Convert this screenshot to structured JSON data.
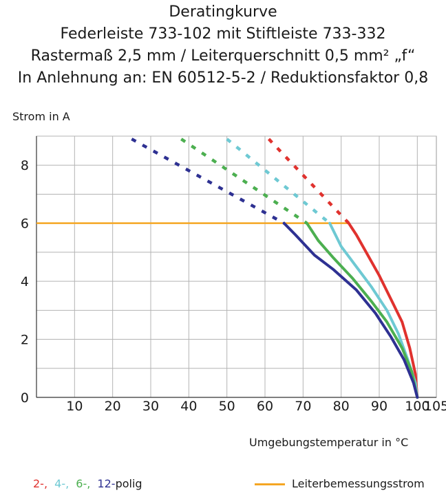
{
  "chart_data": {
    "type": "line",
    "title_lines": [
      "Deratingkurve",
      "Federleiste 733-102 mit Stiftleiste 733-332",
      "Rastermaß 2,5 mm / Leiterquerschnitt 0,5 mm² „f“",
      "In Anlehnung an: EN 60512-5-2 / Reduktionsfaktor 0,8"
    ],
    "ylabel": "Strom in A",
    "xlabel": "Umgebungstemperatur in °C",
    "xlim": [
      0,
      105
    ],
    "ylim": [
      0,
      9
    ],
    "x_ticks": [
      10,
      20,
      30,
      40,
      50,
      60,
      70,
      80,
      90,
      100,
      105
    ],
    "y_ticks": [
      0,
      2,
      4,
      6,
      8
    ],
    "x_grid": [
      10,
      20,
      30,
      40,
      50,
      60,
      70,
      80,
      90,
      100
    ],
    "y_grid": [
      1,
      2,
      3,
      4,
      5,
      6,
      7,
      8,
      9
    ],
    "rated_current": {
      "name": "Leiterbemessungsstrom",
      "value": 6,
      "color": "#f5a623"
    },
    "series": [
      {
        "name": "2-",
        "color": "#e0322e",
        "dashed": [
          [
            61,
            8.9
          ],
          [
            82,
            6.0
          ]
        ],
        "solid": [
          [
            82,
            6.0
          ],
          [
            84,
            5.6
          ],
          [
            87,
            4.9
          ],
          [
            90,
            4.2
          ],
          [
            93,
            3.4
          ],
          [
            96,
            2.6
          ],
          [
            98,
            1.7
          ],
          [
            99.5,
            0.8
          ],
          [
            100,
            0
          ]
        ]
      },
      {
        "name": "4-",
        "color": "#6ec9d3",
        "dashed": [
          [
            50,
            8.9
          ],
          [
            77,
            6.0
          ]
        ],
        "solid": [
          [
            77,
            6.0
          ],
          [
            80,
            5.2
          ],
          [
            84,
            4.5
          ],
          [
            88,
            3.8
          ],
          [
            92,
            3.0
          ],
          [
            95,
            2.2
          ],
          [
            97.5,
            1.3
          ],
          [
            99.5,
            0.5
          ],
          [
            100,
            0
          ]
        ]
      },
      {
        "name": "6-",
        "color": "#4caf50",
        "dashed": [
          [
            38,
            8.9
          ],
          [
            71,
            6.0
          ]
        ],
        "solid": [
          [
            71,
            6.0
          ],
          [
            74,
            5.4
          ],
          [
            78,
            4.8
          ],
          [
            83,
            4.1
          ],
          [
            88,
            3.3
          ],
          [
            92,
            2.6
          ],
          [
            96,
            1.7
          ],
          [
            98.5,
            0.9
          ],
          [
            100,
            0
          ]
        ]
      },
      {
        "name": "12-",
        "color": "#2e3192",
        "dashed": [
          [
            25,
            8.9
          ],
          [
            65,
            6.0
          ]
        ],
        "solid": [
          [
            65,
            6.0
          ],
          [
            68,
            5.6
          ],
          [
            73,
            4.9
          ],
          [
            78,
            4.4
          ],
          [
            84,
            3.7
          ],
          [
            89,
            2.9
          ],
          [
            93,
            2.1
          ],
          [
            96.5,
            1.3
          ],
          [
            99,
            0.5
          ],
          [
            100,
            0
          ]
        ]
      }
    ]
  },
  "legend": {
    "items": [
      "2-,",
      "4-,",
      "6-,",
      "12-"
    ],
    "suffix": "polig",
    "rated_label": "Leiterbemessungsstrom"
  }
}
